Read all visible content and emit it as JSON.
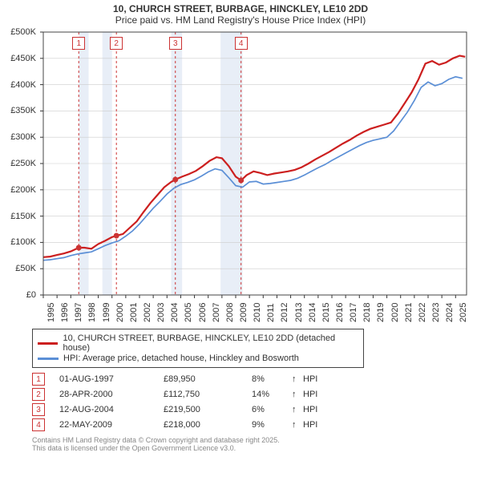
{
  "title_line1": "10, CHURCH STREET, BURBAGE, HINCKLEY, LE10 2DD",
  "title_line2": "Price paid vs. HM Land Registry's House Price Index (HPI)",
  "title_fontsize": 12,
  "chart": {
    "type": "line",
    "background_color": "#ffffff",
    "plot_border_color": "#444444",
    "grid_color": "#cccccc",
    "x_year_min": 1995,
    "x_year_max": 2025.8,
    "ylim": [
      0,
      500000
    ],
    "ytick_step": 50000,
    "ytick_labels": [
      "£0",
      "£50K",
      "£100K",
      "£150K",
      "£200K",
      "£250K",
      "£300K",
      "£350K",
      "£400K",
      "£450K",
      "£500K"
    ],
    "x_years": [
      1995,
      1996,
      1997,
      1998,
      1999,
      2000,
      2001,
      2002,
      2003,
      2004,
      2005,
      2006,
      2007,
      2008,
      2009,
      2010,
      2011,
      2012,
      2013,
      2014,
      2015,
      2016,
      2017,
      2018,
      2019,
      2020,
      2021,
      2022,
      2023,
      2024,
      2025
    ],
    "xtick_fontsize": 11,
    "ytick_fontsize": 11,
    "recession_bands": [
      {
        "start": 1997.6,
        "end": 1998.3,
        "color": "#e8eef7"
      },
      {
        "start": 1999.3,
        "end": 2000.0,
        "color": "#e8eef7"
      },
      {
        "start": 2004.3,
        "end": 2005.1,
        "color": "#e8eef7"
      },
      {
        "start": 2007.9,
        "end": 2009.5,
        "color": "#e8eef7"
      }
    ],
    "marker_vlines_color": "#cc3333",
    "marker_vlines_dash": "3,3",
    "markers": [
      {
        "num": "1",
        "year": 1997.58,
        "value": 89950
      },
      {
        "num": "2",
        "year": 2000.32,
        "value": 112750
      },
      {
        "num": "3",
        "year": 2004.61,
        "value": 219500
      },
      {
        "num": "4",
        "year": 2009.39,
        "value": 218000
      }
    ],
    "marker_box_border": "#cc3333",
    "marker_box_text": "#cc3333",
    "marker_dot_color": "#cc3333",
    "marker_dot_radius": 3.5,
    "series": [
      {
        "name": "price_paid",
        "label": "10, CHURCH STREET, BURBAGE, HINCKLEY, LE10 2DD (detached house)",
        "color": "#cc1f1f",
        "line_width": 2.2,
        "points": [
          [
            1995.0,
            72000
          ],
          [
            1995.5,
            73000
          ],
          [
            1996.0,
            76000
          ],
          [
            1996.5,
            79000
          ],
          [
            1997.0,
            83000
          ],
          [
            1997.58,
            89950
          ],
          [
            1998.0,
            90000
          ],
          [
            1998.5,
            88000
          ],
          [
            1999.0,
            97000
          ],
          [
            1999.5,
            103000
          ],
          [
            2000.0,
            110000
          ],
          [
            2000.32,
            112750
          ],
          [
            2000.8,
            116000
          ],
          [
            2001.3,
            128000
          ],
          [
            2001.8,
            140000
          ],
          [
            2002.3,
            158000
          ],
          [
            2002.8,
            175000
          ],
          [
            2003.3,
            190000
          ],
          [
            2003.8,
            205000
          ],
          [
            2004.3,
            215000
          ],
          [
            2004.61,
            219500
          ],
          [
            2005.1,
            225000
          ],
          [
            2005.6,
            230000
          ],
          [
            2006.1,
            236000
          ],
          [
            2006.6,
            245000
          ],
          [
            2007.1,
            255000
          ],
          [
            2007.6,
            262000
          ],
          [
            2008.0,
            260000
          ],
          [
            2008.5,
            245000
          ],
          [
            2009.0,
            225000
          ],
          [
            2009.39,
            218000
          ],
          [
            2009.8,
            228000
          ],
          [
            2010.3,
            235000
          ],
          [
            2010.8,
            232000
          ],
          [
            2011.3,
            228000
          ],
          [
            2011.8,
            231000
          ],
          [
            2012.3,
            233000
          ],
          [
            2012.8,
            235000
          ],
          [
            2013.3,
            238000
          ],
          [
            2013.8,
            243000
          ],
          [
            2014.3,
            250000
          ],
          [
            2014.8,
            258000
          ],
          [
            2015.3,
            265000
          ],
          [
            2015.8,
            272000
          ],
          [
            2016.3,
            280000
          ],
          [
            2016.8,
            288000
          ],
          [
            2017.3,
            295000
          ],
          [
            2017.8,
            303000
          ],
          [
            2018.3,
            310000
          ],
          [
            2018.8,
            316000
          ],
          [
            2019.3,
            320000
          ],
          [
            2019.8,
            324000
          ],
          [
            2020.3,
            328000
          ],
          [
            2020.8,
            345000
          ],
          [
            2021.3,
            365000
          ],
          [
            2021.8,
            385000
          ],
          [
            2022.3,
            410000
          ],
          [
            2022.8,
            440000
          ],
          [
            2023.3,
            445000
          ],
          [
            2023.8,
            438000
          ],
          [
            2024.3,
            442000
          ],
          [
            2024.8,
            450000
          ],
          [
            2025.3,
            455000
          ],
          [
            2025.7,
            453000
          ]
        ]
      },
      {
        "name": "hpi",
        "label": "HPI: Average price, detached house, Hinckley and Bosworth",
        "color": "#5b8fd6",
        "line_width": 1.7,
        "points": [
          [
            1995.0,
            66000
          ],
          [
            1995.5,
            67000
          ],
          [
            1996.0,
            69000
          ],
          [
            1996.5,
            71000
          ],
          [
            1997.0,
            75000
          ],
          [
            1997.5,
            78000
          ],
          [
            1998.0,
            80000
          ],
          [
            1998.5,
            82000
          ],
          [
            1999.0,
            88000
          ],
          [
            1999.5,
            94000
          ],
          [
            2000.0,
            99000
          ],
          [
            2000.5,
            103000
          ],
          [
            2001.0,
            112000
          ],
          [
            2001.5,
            122000
          ],
          [
            2002.0,
            135000
          ],
          [
            2002.5,
            150000
          ],
          [
            2003.0,
            165000
          ],
          [
            2003.5,
            178000
          ],
          [
            2004.0,
            192000
          ],
          [
            2004.5,
            203000
          ],
          [
            2005.0,
            210000
          ],
          [
            2005.5,
            214000
          ],
          [
            2006.0,
            219000
          ],
          [
            2006.5,
            226000
          ],
          [
            2007.0,
            234000
          ],
          [
            2007.5,
            240000
          ],
          [
            2008.0,
            237000
          ],
          [
            2008.5,
            223000
          ],
          [
            2009.0,
            208000
          ],
          [
            2009.5,
            205000
          ],
          [
            2010.0,
            215000
          ],
          [
            2010.5,
            216000
          ],
          [
            2011.0,
            211000
          ],
          [
            2011.5,
            212000
          ],
          [
            2012.0,
            214000
          ],
          [
            2012.5,
            216000
          ],
          [
            2013.0,
            218000
          ],
          [
            2013.5,
            222000
          ],
          [
            2014.0,
            228000
          ],
          [
            2014.5,
            235000
          ],
          [
            2015.0,
            242000
          ],
          [
            2015.5,
            248000
          ],
          [
            2016.0,
            256000
          ],
          [
            2016.5,
            263000
          ],
          [
            2017.0,
            270000
          ],
          [
            2017.5,
            277000
          ],
          [
            2018.0,
            284000
          ],
          [
            2018.5,
            290000
          ],
          [
            2019.0,
            294000
          ],
          [
            2019.5,
            297000
          ],
          [
            2020.0,
            300000
          ],
          [
            2020.5,
            312000
          ],
          [
            2021.0,
            330000
          ],
          [
            2021.5,
            348000
          ],
          [
            2022.0,
            370000
          ],
          [
            2022.5,
            395000
          ],
          [
            2023.0,
            405000
          ],
          [
            2023.5,
            398000
          ],
          [
            2024.0,
            402000
          ],
          [
            2024.5,
            410000
          ],
          [
            2025.0,
            415000
          ],
          [
            2025.5,
            412000
          ]
        ]
      }
    ]
  },
  "legend": {
    "border_color": "#444444",
    "fontsize": 11
  },
  "transactions": [
    {
      "num": "1",
      "date": "01-AUG-1997",
      "price": "£89,950",
      "pct": "8%",
      "arrow": "↑",
      "note": "HPI"
    },
    {
      "num": "2",
      "date": "28-APR-2000",
      "price": "£112,750",
      "pct": "14%",
      "arrow": "↑",
      "note": "HPI"
    },
    {
      "num": "3",
      "date": "12-AUG-2004",
      "price": "£219,500",
      "pct": "6%",
      "arrow": "↑",
      "note": "HPI"
    },
    {
      "num": "4",
      "date": "22-MAY-2009",
      "price": "£218,000",
      "pct": "9%",
      "arrow": "↑",
      "note": "HPI"
    }
  ],
  "transaction_box_border": "#cc3333",
  "transaction_box_text": "#cc3333",
  "footer_line1": "Contains HM Land Registry data © Crown copyright and database right 2025.",
  "footer_line2": "This data is licensed under the Open Government Licence v3.0."
}
